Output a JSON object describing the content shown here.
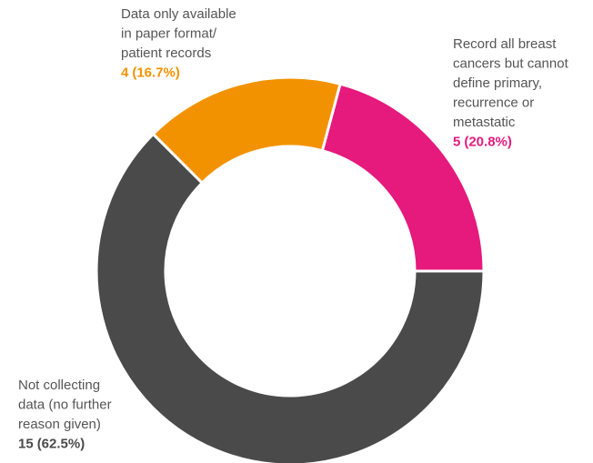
{
  "chart_data": {
    "type": "donut",
    "categories": [
      [
        "Data only available",
        "in paper format/",
        "patient records"
      ],
      [
        "Record all breast",
        "cancers but cannot",
        "define primary,",
        "recurrence or",
        "metastatic"
      ],
      [
        "Not collecting",
        "data (no further",
        "reason given)"
      ]
    ],
    "values": [
      4,
      5,
      15
    ],
    "percentages": [
      16.7,
      20.8,
      62.5
    ],
    "percentage_labels": [
      "(16.7%)",
      "(20.8%)",
      "(62.5%)"
    ],
    "colors": [
      "#f39200",
      "#e6197d",
      "#4a4a4a"
    ]
  }
}
